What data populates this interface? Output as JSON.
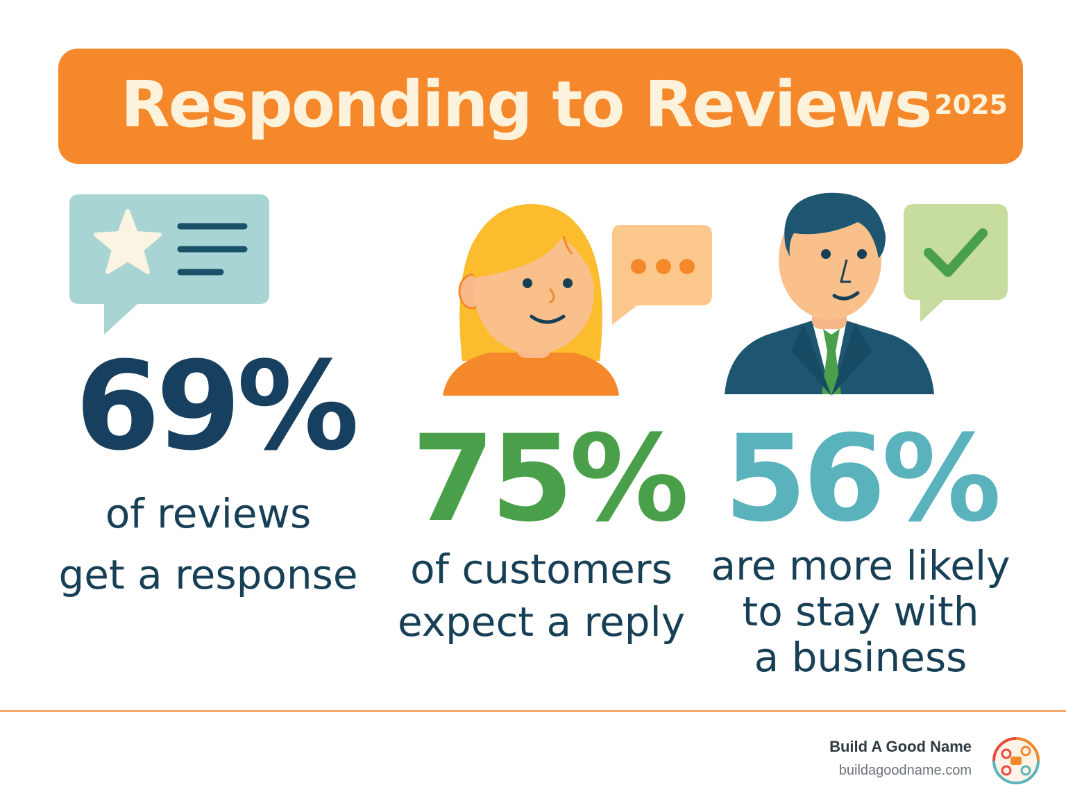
{
  "header": {
    "title": "Responding to Reviews",
    "year": "2025"
  },
  "stats": [
    {
      "value": "69%",
      "line1": "of reviews",
      "line2": "get a response",
      "color": "#173f5f"
    },
    {
      "value": "75%",
      "line1": "of customers",
      "line2": "expect a reply",
      "color": "#4aa04a"
    },
    {
      "value": "56%",
      "line1": "are more likely",
      "line2": "to stay with",
      "line3": "a business",
      "color": "#5ab2bd"
    }
  ],
  "icons": {
    "review": "review-bubble-star-icon",
    "woman": "woman-avatar-icon",
    "dots": "typing-bubble-icon",
    "man": "businessman-avatar-icon",
    "check": "check-bubble-icon"
  },
  "footer": {
    "brand": "Build A Good Name",
    "url": "buildagoodname.com"
  }
}
